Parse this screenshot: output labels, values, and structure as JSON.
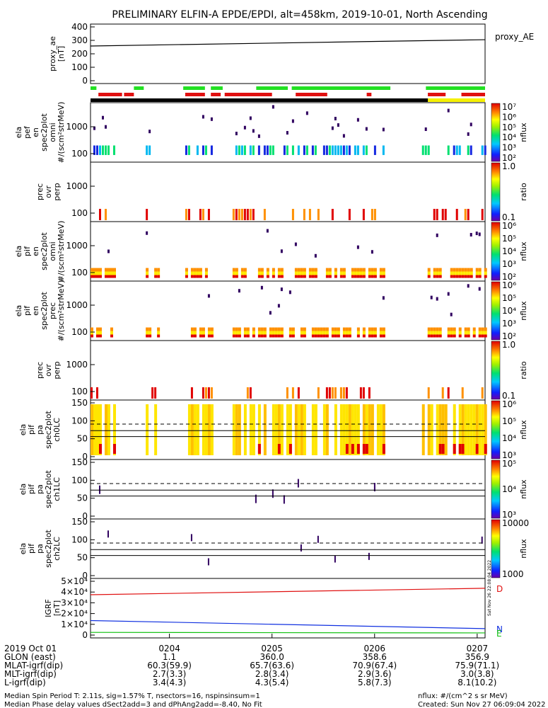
{
  "title": "PRELIMINARY ELFIN-A EPDE/EPDI, alt=458km, 2019-10-01, North Ascending",
  "side_note": "Sat Nov 26 22:08:04 2022",
  "chart_data": [
    {
      "id": "proxy_ae",
      "type": "line",
      "ylabel": [
        "proxy_ae",
        "[nT]"
      ],
      "legend": "proxy_AE",
      "yticks": [
        "400",
        "300",
        "200",
        "100",
        "0"
      ],
      "ylim": [
        0,
        400
      ],
      "x": [
        0,
        1
      ],
      "y": [
        258,
        305
      ]
    },
    {
      "id": "status_bars",
      "type": "bar",
      "rows": [
        "green",
        "red",
        "black"
      ],
      "colors": {
        "green": "#22e022",
        "red": "#e01010",
        "black": "#000000",
        "yellow": "#f5f000"
      }
    },
    {
      "id": "ela_pef_en_omni",
      "type": "heatmap",
      "ylabel": [
        "ela",
        "pef",
        "en",
        "spec2plot",
        "omni",
        "#/(scm²strMeV)"
      ],
      "yticks": [
        "1000",
        "100"
      ],
      "colorbar": {
        "label": "nflux",
        "ticks": [
          "10⁷",
          "10⁶",
          "10⁵",
          "10⁴",
          "10³",
          "10²"
        ]
      }
    },
    {
      "id": "ela_pef_prec_ovr_perp",
      "type": "heatmap",
      "ylabel": [
        "prec",
        "ovr",
        "perp"
      ],
      "yticks": [
        "1000",
        "100"
      ],
      "colorbar": {
        "label": "ratio",
        "ticks": [
          "1.0",
          "0.1"
        ]
      }
    },
    {
      "id": "ela_pif_en_omni",
      "type": "heatmap",
      "ylabel": [
        "ela",
        "pif",
        "en",
        "spec2plot",
        "omni",
        "#/(scm²strMeV)"
      ],
      "yticks": [
        "1000",
        "100"
      ],
      "colorbar": {
        "label": "nflux",
        "ticks": [
          "10⁶",
          "10⁵",
          "10⁴",
          "10³",
          "10²"
        ]
      }
    },
    {
      "id": "ela_pif_en_prec",
      "type": "heatmap",
      "ylabel": [
        "ela",
        "pif",
        "en",
        "spec2plot",
        "prec",
        "#/(scm²strMeV)"
      ],
      "yticks": [
        "1000",
        "100"
      ],
      "colorbar": {
        "label": "nflux",
        "ticks": [
          "10⁶",
          "10⁵",
          "10⁴",
          "10³",
          "10²"
        ]
      }
    },
    {
      "id": "ela_pif_prec_ovr_perp",
      "type": "heatmap",
      "ylabel": [
        "prec",
        "ovr",
        "perp"
      ],
      "yticks": [
        "1000",
        "100"
      ],
      "colorbar": {
        "label": "ratio",
        "ticks": [
          "1.0",
          "0.1"
        ]
      }
    },
    {
      "id": "ela_pif_pa_ch0LC",
      "type": "heatmap",
      "ylabel": [
        "ela",
        "pif",
        "pa",
        "spec2plot",
        "ch0LC"
      ],
      "yticks": [
        "150",
        "100",
        "50",
        "0"
      ],
      "colorbar": {
        "label": "nflux",
        "ticks": [
          "10⁶",
          "10⁵",
          "10⁴",
          "10³"
        ]
      }
    },
    {
      "id": "ela_pif_pa_ch1LC",
      "type": "heatmap",
      "ylabel": [
        "ela",
        "pif",
        "pa",
        "spec2plot",
        "ch1LC"
      ],
      "yticks": [
        "150",
        "100",
        "50",
        "0"
      ],
      "colorbar": {
        "label": "nflux",
        "ticks": [
          "10⁵",
          "10⁴",
          "10³"
        ]
      }
    },
    {
      "id": "ela_pif_pa_ch2LC",
      "type": "heatmap",
      "ylabel": [
        "ela",
        "pif",
        "pa",
        "spec2plot",
        "ch2LC"
      ],
      "yticks": [
        "150",
        "100",
        "50",
        "0"
      ],
      "colorbar": {
        "label": "nflux",
        "ticks": [
          "10000",
          "1000"
        ]
      }
    },
    {
      "id": "igrf",
      "type": "line",
      "ylabel": [
        "IGRF",
        "[nT]"
      ],
      "yticks": [
        "5×10⁴",
        "4×10⁴",
        "3×10⁴",
        "2×10⁴",
        "1×10⁴",
        "0"
      ],
      "ylim": [
        0,
        50000
      ],
      "series": [
        {
          "name": "D",
          "color": "#e01010",
          "x": [
            0,
            1
          ],
          "y": [
            37500,
            43500
          ]
        },
        {
          "name": "N",
          "color": "#1030e0",
          "x": [
            0,
            1
          ],
          "y": [
            13500,
            6000
          ]
        },
        {
          "name": "E",
          "color": "#10c010",
          "x": [
            0,
            1
          ],
          "y": [
            2500,
            2000
          ]
        }
      ]
    }
  ],
  "xaxis": {
    "rows": [
      {
        "label": "2019 Oct 01",
        "values": [
          "0204",
          "0205",
          "0206",
          "0207"
        ]
      },
      {
        "label": "GLON (east)",
        "values": [
          "1.1",
          "360.0",
          "358.6",
          "356.9"
        ]
      },
      {
        "label": "MLAT-igrf(dip)",
        "values": [
          "60.3(59.9)",
          "65.7(63.6)",
          "70.9(67.4)",
          "75.9(71.1)"
        ]
      },
      {
        "label": "MLT-igrf(dip)",
        "values": [
          "2.7(3.3)",
          "2.8(3.4)",
          "2.9(3.6)",
          "3.0(3.8)"
        ]
      },
      {
        "label": "L-igrf(dip)",
        "values": [
          "3.4(4.3)",
          "4.3(5.4)",
          "5.8(7.3)",
          "8.1(10.2)"
        ]
      }
    ]
  },
  "footer": {
    "left1": "Median Spin Period T: 2.11s, sig=1.57% T, nsectors=16, nspinsinsum=1",
    "left2": "Median Phase delay values dSect2add=3 and dPhAng2add=-8.40, No Fit",
    "right1": "nflux: #/(cm^2 s sr MeV)",
    "right2": "Created: Sun Nov 27 06:09:04 2022"
  }
}
